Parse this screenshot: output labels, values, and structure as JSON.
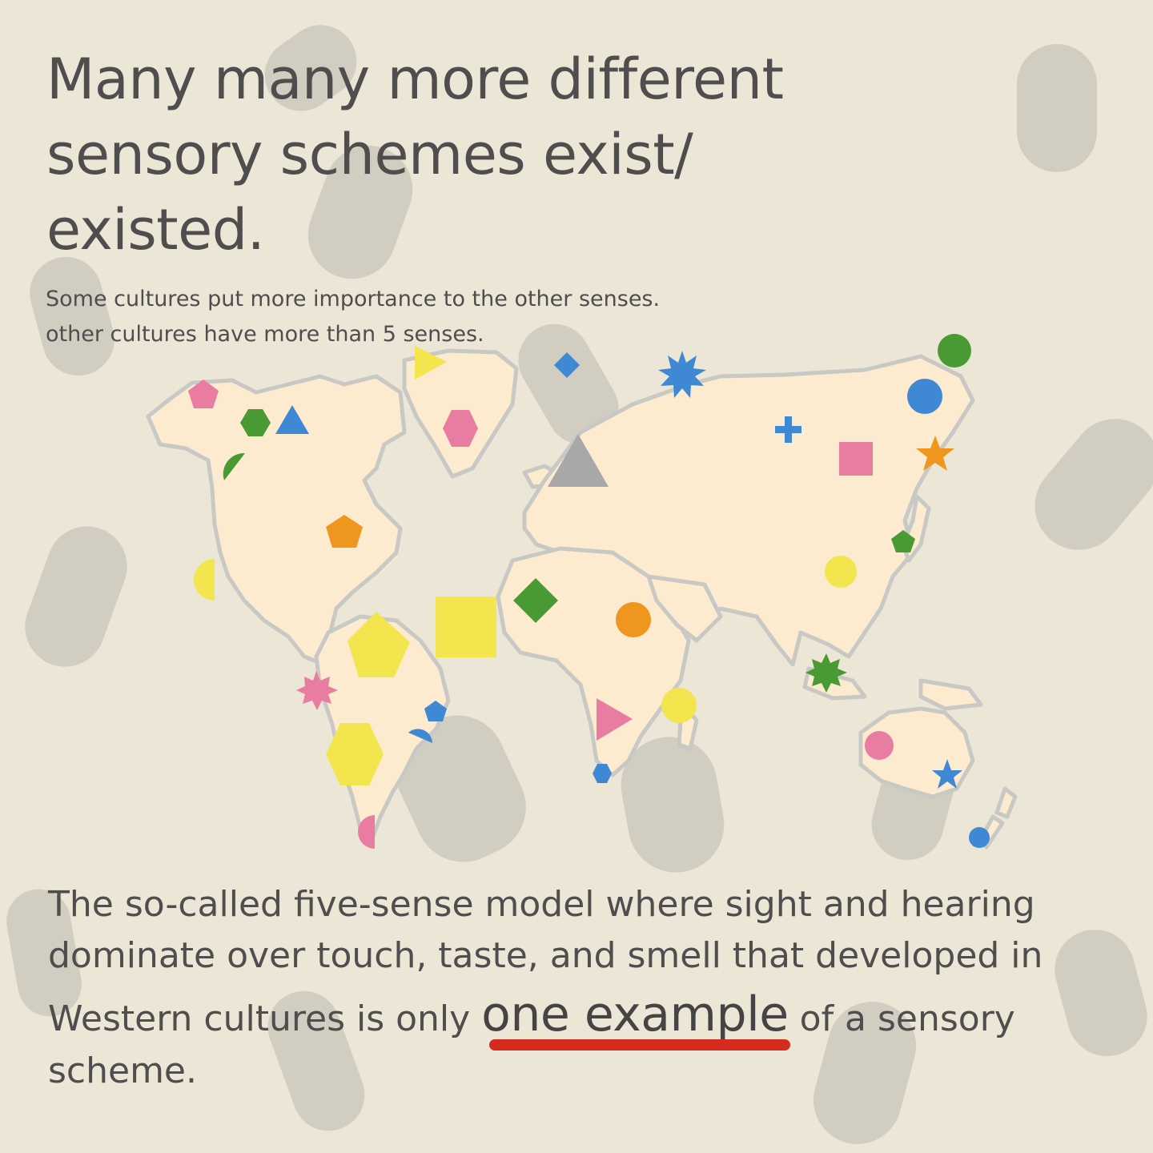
{
  "title": "Many many more different sensory schemes exist/ existed.",
  "title_lines": [
    "Many many more different",
    "sensory schemes exist/",
    "existed."
  ],
  "subtitle": {
    "line1": "Some cultures put more importance to the other senses.",
    "line2": "other cultures have more than 5 senses."
  },
  "body": {
    "line1": "The so-called five-sense model where sight and hearing",
    "line2": "dominate over touch, taste, and smell that developed in",
    "line3_before": "Western cultures is only ",
    "emphasis": "one example",
    "line3_after": " of a sensory",
    "line4": "scheme."
  },
  "colors": {
    "background": "#ece6d6",
    "map_land": "#fdebd0",
    "map_outline": "#c8c8c4",
    "smudge": "#cdc9bc",
    "text": "#4f4d4d",
    "underline": "#d52b1e",
    "marker_pink": "#e87da1",
    "marker_green": "#4a9a34",
    "marker_blue": "#3f88d4",
    "marker_yellow": "#f2e54e",
    "marker_orange": "#ef961e",
    "marker_gray": "#a8a8a8"
  },
  "markers": [
    {
      "shape": "pentagon",
      "color": "pink",
      "region": "alaska"
    },
    {
      "shape": "hexagon",
      "color": "green",
      "region": "northern-canada"
    },
    {
      "shape": "triangle",
      "color": "blue",
      "region": "northern-canada"
    },
    {
      "shape": "half-circle",
      "color": "green",
      "region": "western-canada"
    },
    {
      "shape": "pentagon",
      "color": "orange",
      "region": "great-lakes"
    },
    {
      "shape": "half-circle",
      "color": "yellow",
      "region": "pacific-coast"
    },
    {
      "shape": "triangle",
      "color": "yellow",
      "region": "greenland-north"
    },
    {
      "shape": "hexagon",
      "color": "pink",
      "region": "greenland"
    },
    {
      "shape": "diamond",
      "color": "blue",
      "region": "svalbard"
    },
    {
      "shape": "triangle",
      "color": "gray",
      "region": "scandinavia"
    },
    {
      "shape": "burst",
      "color": "blue",
      "region": "northern-russia"
    },
    {
      "shape": "circle",
      "color": "green",
      "region": "chukotka"
    },
    {
      "shape": "circle",
      "color": "blue",
      "region": "kamchatka"
    },
    {
      "shape": "cross",
      "color": "blue",
      "region": "siberia"
    },
    {
      "shape": "square",
      "color": "pink",
      "region": "siberia"
    },
    {
      "shape": "star",
      "color": "orange",
      "region": "russian-far-east"
    },
    {
      "shape": "pentagon",
      "color": "green",
      "region": "korea"
    },
    {
      "shape": "circle",
      "color": "yellow",
      "region": "china"
    },
    {
      "shape": "diamond",
      "color": "green",
      "region": "west-africa"
    },
    {
      "shape": "circle",
      "color": "orange",
      "region": "east-africa"
    },
    {
      "shape": "square",
      "color": "yellow",
      "region": "atlantic"
    },
    {
      "shape": "pentagon",
      "color": "yellow",
      "region": "northern-south-america"
    },
    {
      "shape": "burst",
      "color": "pink",
      "region": "pacific-south-america"
    },
    {
      "shape": "pentagon",
      "color": "blue",
      "region": "brazil"
    },
    {
      "shape": "half-circle",
      "color": "blue",
      "region": "brazil"
    },
    {
      "shape": "hexagon",
      "color": "yellow",
      "region": "southern-south-america"
    },
    {
      "shape": "half-circle",
      "color": "pink",
      "region": "patagonia"
    },
    {
      "shape": "triangle",
      "color": "pink",
      "region": "southern-africa"
    },
    {
      "shape": "circle",
      "color": "yellow",
      "region": "indian-ocean"
    },
    {
      "shape": "hexagon",
      "color": "blue",
      "region": "south-africa"
    },
    {
      "shape": "burst",
      "color": "green",
      "region": "southeast-asia"
    },
    {
      "shape": "circle",
      "color": "pink",
      "region": "western-australia"
    },
    {
      "shape": "star",
      "color": "blue",
      "region": "eastern-australia"
    },
    {
      "shape": "circle",
      "color": "blue",
      "region": "new-zealand"
    }
  ]
}
